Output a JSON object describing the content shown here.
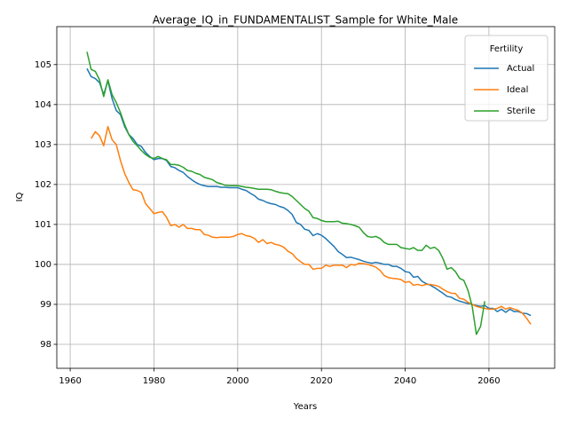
{
  "chart_data": {
    "type": "line",
    "title": "Average_IQ_in_FUNDAMENTALIST_Sample for White_Male",
    "xlabel": "Years",
    "ylabel": "IQ",
    "legend_title": "Fertility",
    "legend": "upper right",
    "grid": true,
    "xlim": [
      1956.8,
      2075.7
    ],
    "xticks": [
      1960,
      1980,
      2000,
      2020,
      2040,
      2060
    ],
    "ylim": [
      97.4,
      105.95
    ],
    "yticks": [
      98,
      99,
      100,
      101,
      102,
      103,
      104,
      105
    ],
    "x": [
      1964,
      1965,
      1966,
      1967,
      1968,
      1969,
      1970,
      1971,
      1972,
      1973,
      1974,
      1975,
      1976,
      1977,
      1978,
      1979,
      1980,
      1981,
      1982,
      1983,
      1984,
      1985,
      1986,
      1987,
      1988,
      1989,
      1990,
      1991,
      1992,
      1993,
      1994,
      1995,
      1996,
      1997,
      1998,
      1999,
      2000,
      2001,
      2002,
      2003,
      2004,
      2005,
      2006,
      2007,
      2008,
      2009,
      2010,
      2011,
      2012,
      2013,
      2014,
      2015,
      2016,
      2017,
      2018,
      2019,
      2020,
      2021,
      2022,
      2023,
      2024,
      2025,
      2026,
      2027,
      2028,
      2029,
      2030,
      2031,
      2032,
      2033,
      2034,
      2035,
      2036,
      2037,
      2038,
      2039,
      2040,
      2041,
      2042,
      2043,
      2044,
      2045,
      2046,
      2047,
      2048,
      2049,
      2050,
      2051,
      2052,
      2053,
      2054,
      2055,
      2056,
      2057,
      2058,
      2059,
      2060,
      2061,
      2062,
      2063,
      2064,
      2065,
      2066,
      2067,
      2068,
      2069,
      2070
    ],
    "series": [
      {
        "name": "Actual",
        "color": "#1f77b4",
        "values": [
          104.9,
          104.7,
          104.65,
          104.55,
          104.25,
          104.6,
          104.15,
          103.85,
          103.75,
          103.45,
          103.25,
          103.15,
          103.0,
          102.95,
          102.8,
          102.7,
          102.62,
          102.65,
          102.65,
          102.6,
          102.45,
          102.42,
          102.35,
          102.3,
          102.2,
          102.12,
          102.05,
          102.0,
          101.97,
          101.95,
          101.95,
          101.95,
          101.93,
          101.93,
          101.92,
          101.92,
          101.92,
          101.88,
          101.85,
          101.78,
          101.72,
          101.63,
          101.6,
          101.55,
          101.52,
          101.5,
          101.45,
          101.42,
          101.35,
          101.25,
          101.05,
          101.0,
          100.88,
          100.85,
          100.72,
          100.77,
          100.73,
          100.65,
          100.55,
          100.45,
          100.32,
          100.25,
          100.17,
          100.18,
          100.15,
          100.12,
          100.08,
          100.05,
          100.03,
          100.05,
          100.03,
          100.0,
          100.0,
          99.95,
          99.95,
          99.9,
          99.82,
          99.8,
          99.68,
          99.7,
          99.58,
          99.52,
          99.48,
          99.42,
          99.35,
          99.28,
          99.2,
          99.18,
          99.12,
          99.08,
          99.05,
          99.02,
          99.0,
          98.97,
          98.95,
          98.97,
          98.9,
          98.9,
          98.82,
          98.88,
          98.8,
          98.88,
          98.82,
          98.82,
          98.78,
          98.77,
          98.72
        ]
      },
      {
        "name": "Ideal",
        "color": "#ff7f0e",
        "values": [
          null,
          103.15,
          103.32,
          103.22,
          102.97,
          103.45,
          103.12,
          103.0,
          102.6,
          102.28,
          102.05,
          101.87,
          101.85,
          101.8,
          101.52,
          101.4,
          101.27,
          101.3,
          101.32,
          101.18,
          100.97,
          101.0,
          100.93,
          101.0,
          100.9,
          100.9,
          100.87,
          100.87,
          100.75,
          100.73,
          100.68,
          100.67,
          100.68,
          100.68,
          100.68,
          100.7,
          100.75,
          100.77,
          100.72,
          100.7,
          100.65,
          100.55,
          100.62,
          100.52,
          100.55,
          100.5,
          100.48,
          100.43,
          100.33,
          100.27,
          100.15,
          100.07,
          100.0,
          100.0,
          99.88,
          99.9,
          99.9,
          99.98,
          99.95,
          99.98,
          99.98,
          99.98,
          99.92,
          100.0,
          99.98,
          100.03,
          100.02,
          100.0,
          99.97,
          99.93,
          99.85,
          99.72,
          99.67,
          99.65,
          99.64,
          99.62,
          99.55,
          99.57,
          99.48,
          99.5,
          99.47,
          99.5,
          99.5,
          99.48,
          99.45,
          99.38,
          99.32,
          99.28,
          99.27,
          99.15,
          99.13,
          99.05,
          99.0,
          98.95,
          98.92,
          98.9,
          98.88,
          98.88,
          98.9,
          98.95,
          98.88,
          98.92,
          98.88,
          98.85,
          98.78,
          98.65,
          98.5
        ]
      },
      {
        "name": "Sterile",
        "color": "#2ca02c",
        "values": [
          105.32,
          104.88,
          104.83,
          104.62,
          104.2,
          104.62,
          104.25,
          104.05,
          103.8,
          103.5,
          103.25,
          103.08,
          102.97,
          102.85,
          102.75,
          102.68,
          102.65,
          102.7,
          102.65,
          102.62,
          102.5,
          102.5,
          102.48,
          102.43,
          102.35,
          102.33,
          102.28,
          102.25,
          102.18,
          102.15,
          102.12,
          102.05,
          102.02,
          101.98,
          101.97,
          101.97,
          101.97,
          101.95,
          101.93,
          101.92,
          101.9,
          101.88,
          101.88,
          101.88,
          101.87,
          101.83,
          101.8,
          101.78,
          101.77,
          101.7,
          101.6,
          101.5,
          101.4,
          101.33,
          101.17,
          101.15,
          101.1,
          101.07,
          101.07,
          101.07,
          101.08,
          101.03,
          101.02,
          101.0,
          100.97,
          100.93,
          100.8,
          100.7,
          100.68,
          100.7,
          100.65,
          100.55,
          100.5,
          100.5,
          100.5,
          100.42,
          100.4,
          100.38,
          100.42,
          100.35,
          100.35,
          100.48,
          100.4,
          100.43,
          100.35,
          100.15,
          99.88,
          99.92,
          99.82,
          99.65,
          99.6,
          99.35,
          98.95,
          98.25,
          98.45,
          99.08,
          null,
          null,
          null,
          null,
          null,
          null,
          null,
          null,
          null,
          null,
          null
        ]
      }
    ]
  }
}
